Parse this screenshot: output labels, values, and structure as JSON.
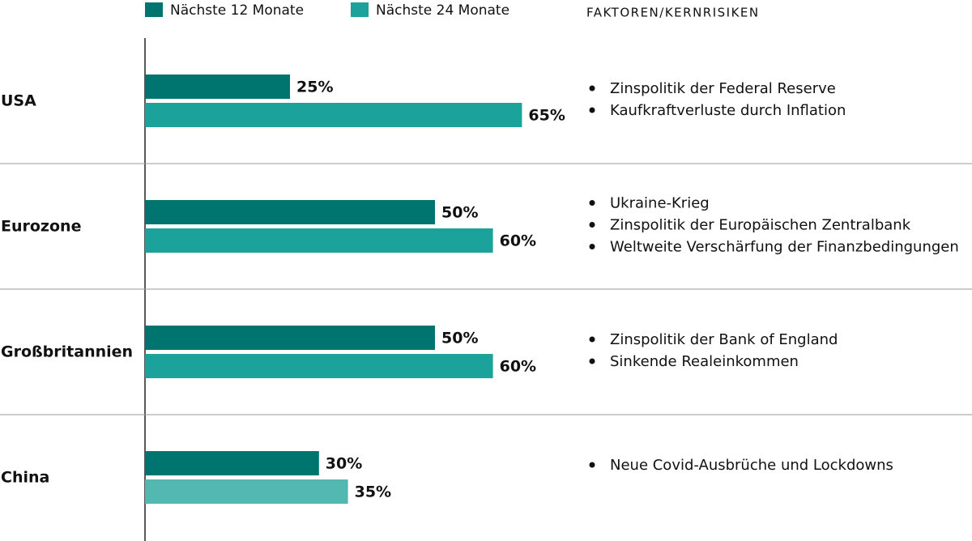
{
  "chart_data": {
    "type": "bar",
    "orientation": "horizontal",
    "categories": [
      "USA",
      "Eurozone",
      "Großbritannien",
      "China"
    ],
    "series": [
      {
        "name": "Nächste 12 Monate",
        "color": "#00756f",
        "values": [
          25,
          50,
          50,
          30
        ],
        "value_labels": [
          "25%",
          "50%",
          "50%",
          "30%"
        ]
      },
      {
        "name": "Nächste 24 Monate",
        "color": "#1ba39b",
        "colors": [
          "#1ba39b",
          "#1ba39b",
          "#1ba39b",
          "#52b8b0"
        ],
        "values": [
          65,
          60,
          60,
          35
        ],
        "value_labels": [
          "65%",
          "60%",
          "60%",
          "35%"
        ]
      }
    ],
    "risks_title": "FAKTOREN/KERNRISIKEN",
    "risks": [
      [
        "Zinspolitik der Federal Reserve",
        "Kaufkraftverluste durch Inflation"
      ],
      [
        "Ukraine-Krieg",
        "Zinspolitik der Europäischen Zentralbank",
        "Weltweite Verschärfung der Finanzbedingungen"
      ],
      [
        "Zinspolitik der Bank of England",
        "Sinkende Realeinkommen"
      ],
      [
        "Neue Covid-Ausbrüche und Lockdowns"
      ]
    ]
  }
}
